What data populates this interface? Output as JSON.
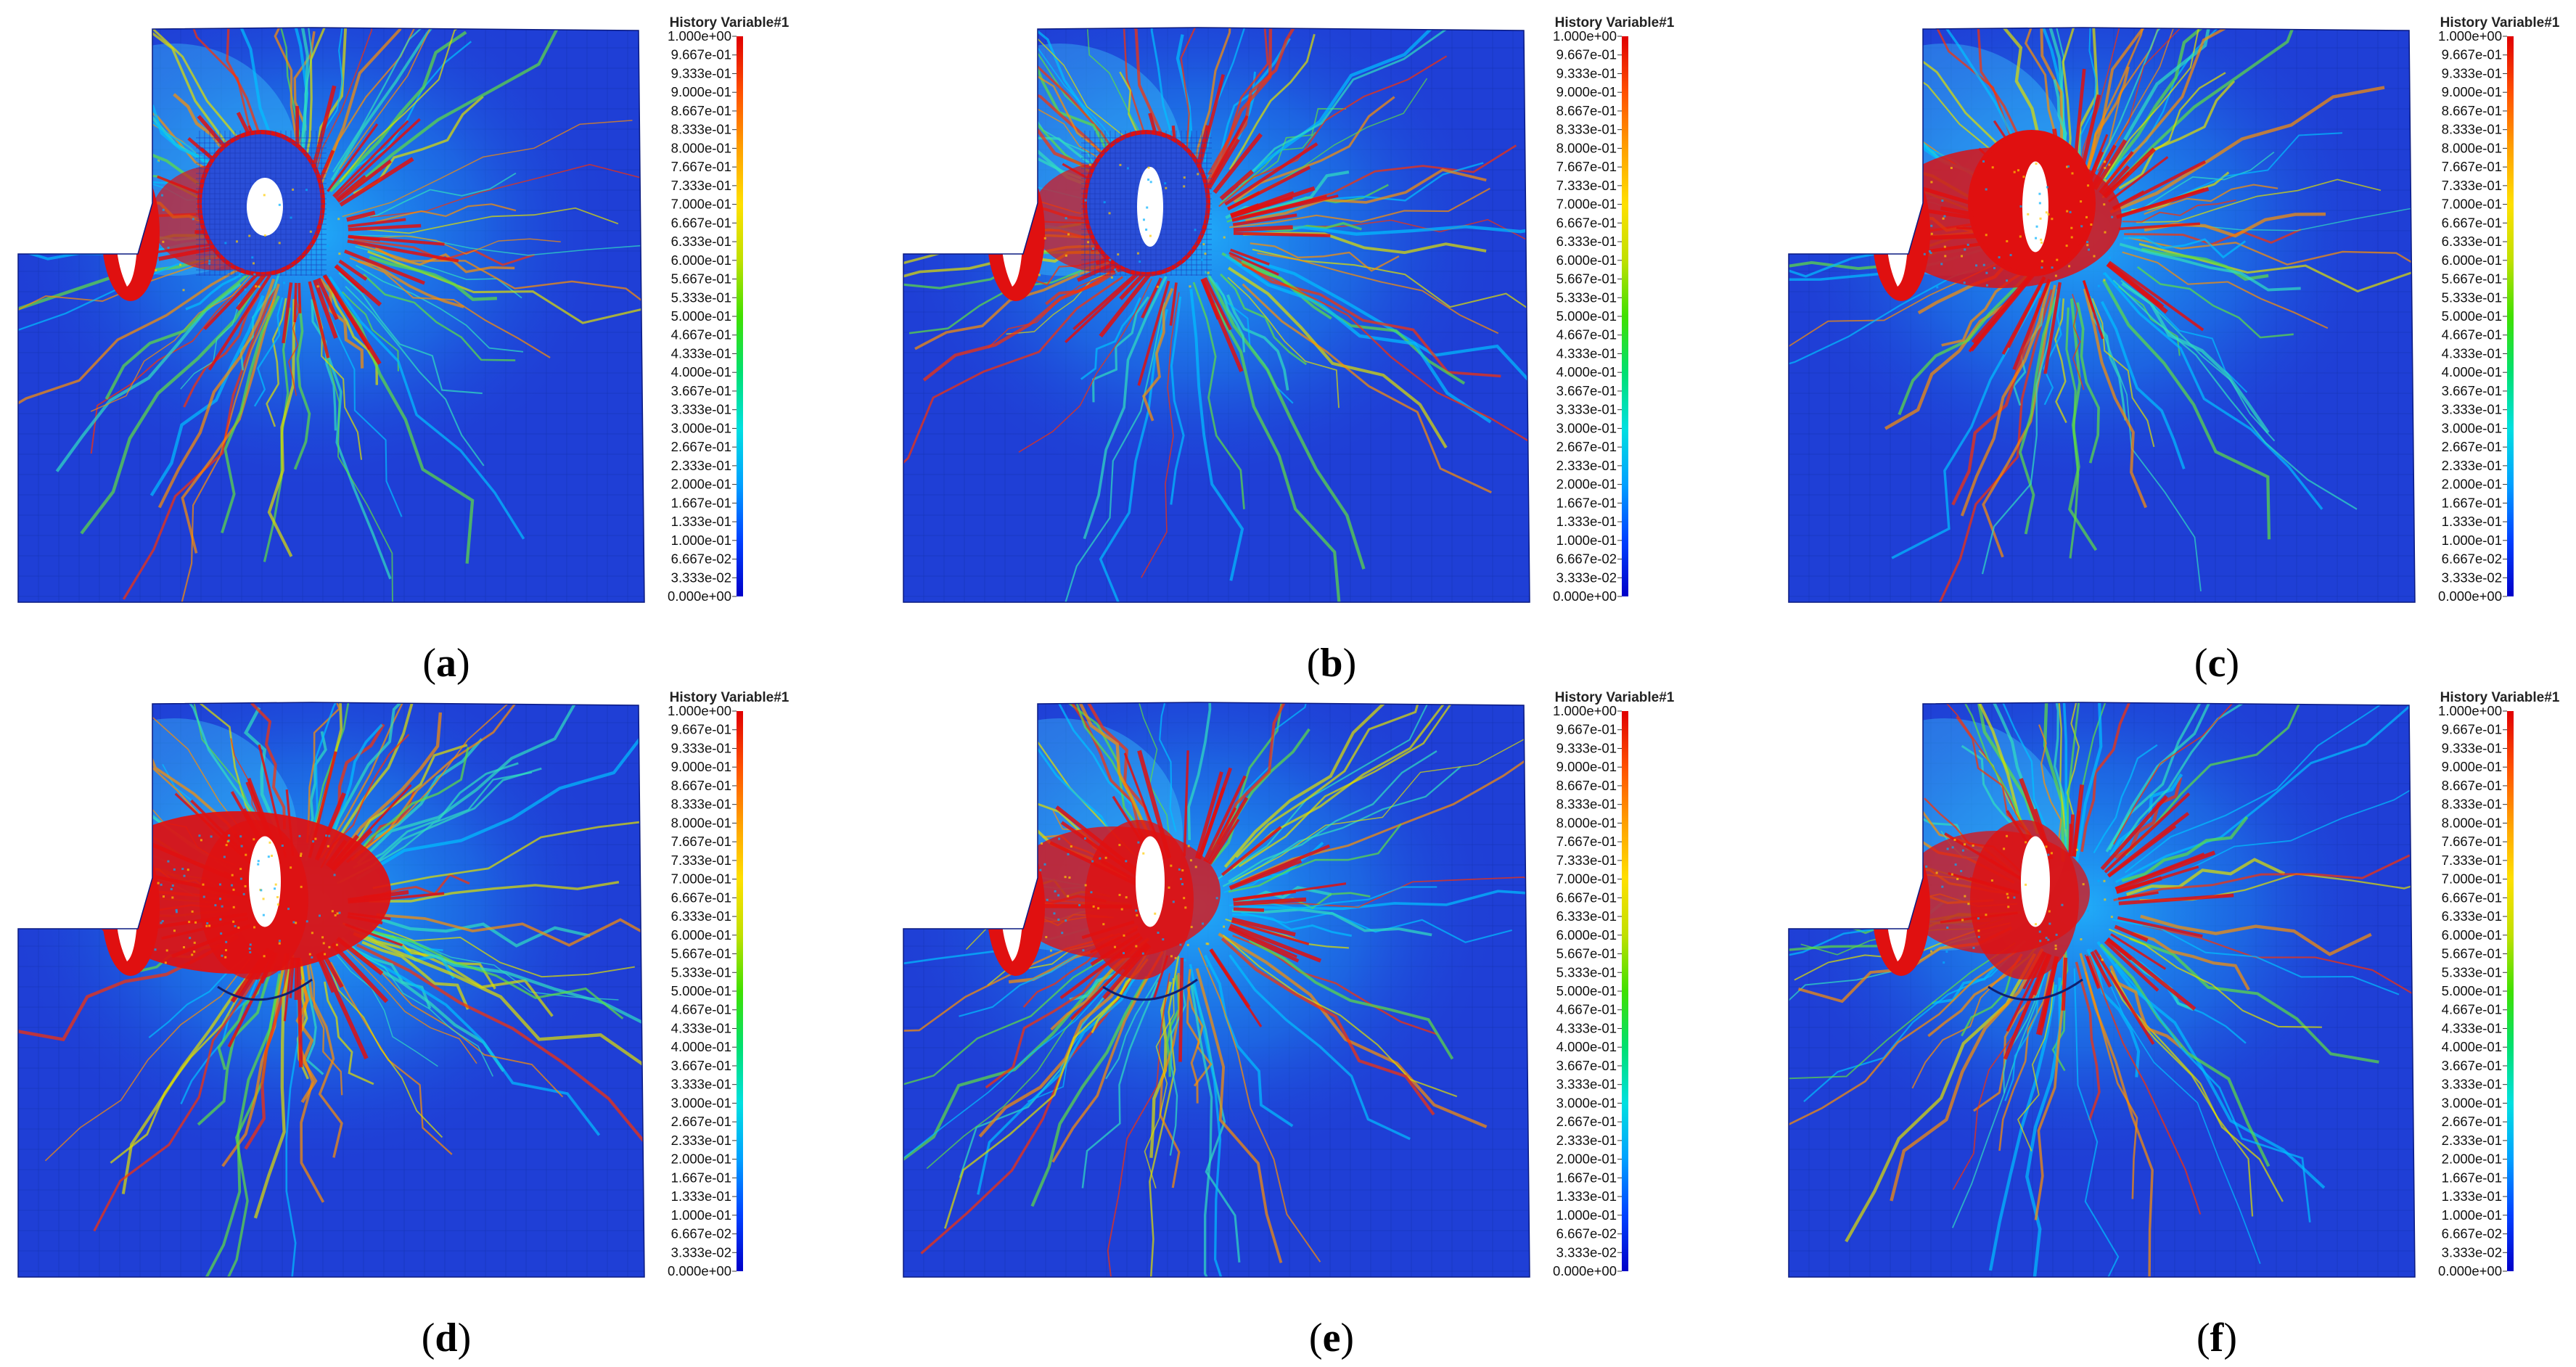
{
  "legend": {
    "title": "History Variable#1",
    "ticks": [
      "1.000e+00",
      "9.667e-01",
      "9.333e-01",
      "9.000e-01",
      "8.667e-01",
      "8.333e-01",
      "8.000e-01",
      "7.667e-01",
      "7.333e-01",
      "7.000e-01",
      "6.667e-01",
      "6.333e-01",
      "6.000e-01",
      "5.667e-01",
      "5.333e-01",
      "5.000e-01",
      "4.667e-01",
      "4.333e-01",
      "4.000e-01",
      "3.667e-01",
      "3.333e-01",
      "3.000e-01",
      "2.667e-01",
      "2.333e-01",
      "2.000e-01",
      "1.667e-01",
      "1.333e-01",
      "1.000e-01",
      "6.667e-02",
      "3.333e-02",
      "0.000e+00"
    ],
    "colors": [
      "#0000c8",
      "#0040ff",
      "#00a0ff",
      "#00e0e0",
      "#00e070",
      "#40e000",
      "#c0e000",
      "#ffe000",
      "#ffa000",
      "#ff5000",
      "#e00000"
    ]
  },
  "panels": [
    {
      "label": "a",
      "paren_open": "(",
      "paren_close": ")"
    },
    {
      "label": "b",
      "paren_open": "(",
      "paren_close": ")"
    },
    {
      "label": "c",
      "paren_open": "(",
      "paren_close": ")"
    },
    {
      "label": "d",
      "paren_open": "(",
      "paren_close": ")"
    },
    {
      "label": "e",
      "paren_open": "(",
      "paren_close": ")"
    },
    {
      "label": "f",
      "paren_open": "(",
      "paren_close": ")"
    }
  ],
  "colors": {
    "mesh_blue": "#1f3fd6",
    "damage_red": "#e01010",
    "hole_white": "#ffffff"
  }
}
